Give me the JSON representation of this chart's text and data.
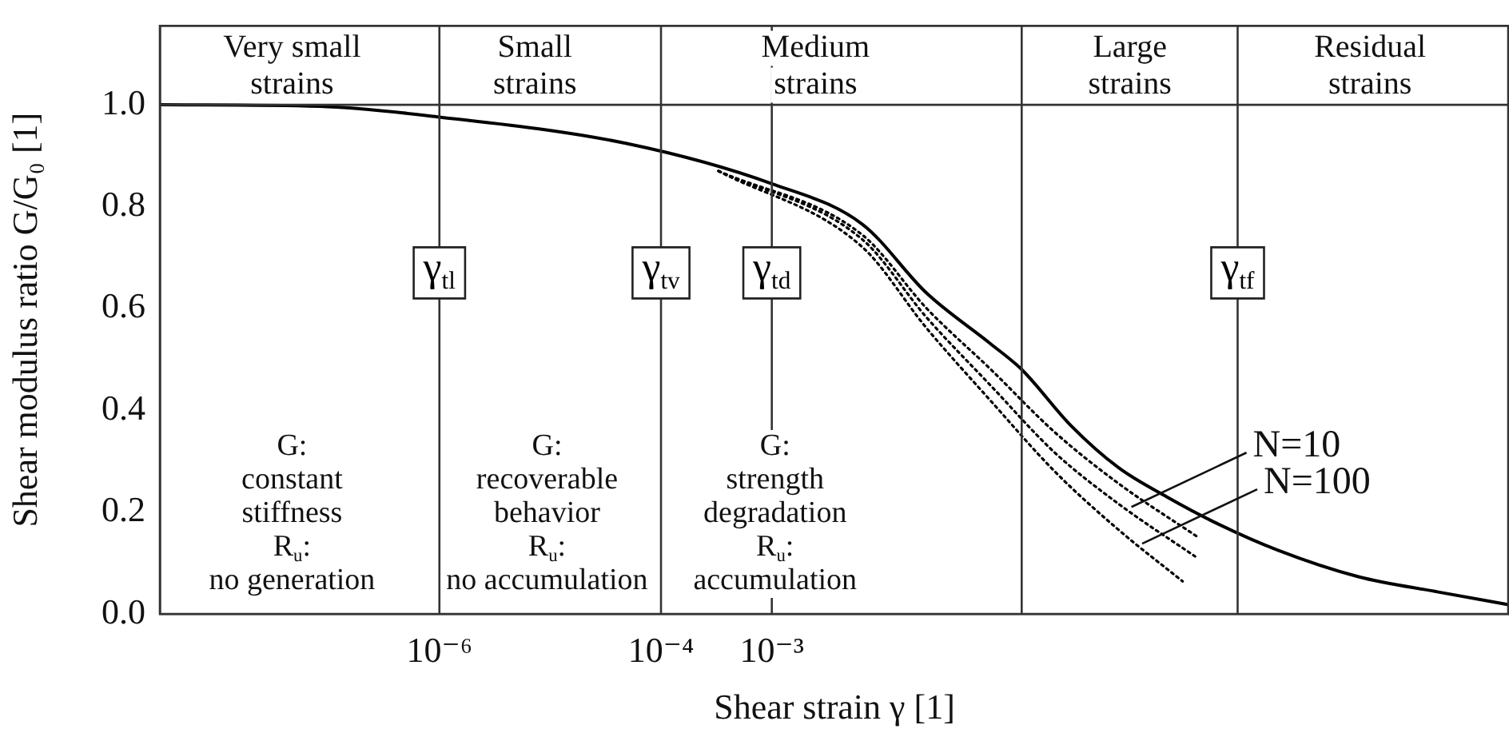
{
  "chart_data": {
    "type": "line",
    "xlabel": "Shear strain γ [1]",
    "ylabel": "Shear modulus ratio G/G₀ [1]",
    "log": "x",
    "xlim": [
      3e-09,
      4500
    ],
    "ylim": [
      0,
      1.155
    ],
    "xticks": [
      {
        "value": 1e-06,
        "label": "10⁻⁶"
      },
      {
        "value": 0.0001,
        "label": "10⁻⁴"
      },
      {
        "value": 0.001,
        "label": "10⁻³"
      }
    ],
    "yticks": [
      {
        "value": 0,
        "label": "0.0"
      },
      {
        "value": 0.2,
        "label": "0.2"
      },
      {
        "value": 0.4,
        "label": "0.4"
      },
      {
        "value": 0.6,
        "label": "0.6"
      },
      {
        "value": 0.8,
        "label": "0.8"
      },
      {
        "value": 1,
        "label": "1.0"
      }
    ],
    "grid": false,
    "legend": false,
    "marker": "none",
    "series": [
      {
        "color": "#000000",
        "line_style": "solid",
        "x": [
          3e-09,
          8.3e-08,
          1e-06,
          4.9e-05,
          0.001,
          0.0066,
          0.025,
          0.095,
          0.18,
          0.5,
          1.35,
          3.66,
          9.9,
          37,
          197,
          1035,
          4467
        ],
        "values": [
          1.0,
          0.997,
          0.976,
          0.924,
          0.845,
          0.765,
          0.63,
          0.53,
          0.48,
          0.37,
          0.287,
          0.23,
          0.18,
          0.125,
          0.073,
          0.043,
          0.018
        ]
      },
      {
        "color": "#000000",
        "line_style": "dotted",
        "x": [
          0.00033,
          0.0066,
          0.025,
          0.095,
          0.357,
          1.35,
          7.1
        ],
        "values": [
          0.87,
          0.744,
          0.6,
          0.48,
          0.357,
          0.256,
          0.15
        ]
      },
      {
        "color": "#000000",
        "line_style": "dotted",
        "x": [
          0.00033,
          0.0066,
          0.025,
          0.095,
          0.357,
          1.35,
          6.6
        ],
        "values": [
          0.87,
          0.735,
          0.582,
          0.448,
          0.317,
          0.216,
          0.113
        ]
      },
      {
        "color": "#000000",
        "line_style": "dotted",
        "x": [
          0.00033,
          0.0066,
          0.025,
          0.095,
          0.357,
          1.35,
          5.1
        ],
        "values": [
          0.87,
          0.72,
          0.561,
          0.418,
          0.28,
          0.165,
          0.064
        ]
      }
    ],
    "ref_lines": [
      {
        "axis": "y",
        "value": 1
      },
      {
        "axis": "x",
        "value": 1e-06,
        "label": "γ$_{tl}$"
      },
      {
        "axis": "x",
        "value": 0.0001,
        "label": "γ$_{tv}$"
      },
      {
        "axis": "x",
        "value": 0.001,
        "label": "γ$_{td}$"
      },
      {
        "axis": "x",
        "value": 0.18
      },
      {
        "axis": "x",
        "value": 16,
        "label": "γ$_{tf}$"
      }
    ],
    "annotations": [
      "Very small\nstrains",
      "Small\nstrains",
      "Medium\nstrains",
      "Large\nstrains",
      "Residual\nstrains",
      "G:\nconstant\nstiffness\nR$_{u}$:\nno generation",
      "G:\nrecoverable\nbehavior\nR$_{u}$:\nno accumulation",
      "G:\nstrength\ndegradation\nR$_{u}$:\naccumulation",
      {
        "text": "N=10",
        "x": 1.76,
        "y": 0.21
      },
      {
        "text": "N=100",
        "x": 2.2,
        "y": 0.138
      }
    ]
  }
}
